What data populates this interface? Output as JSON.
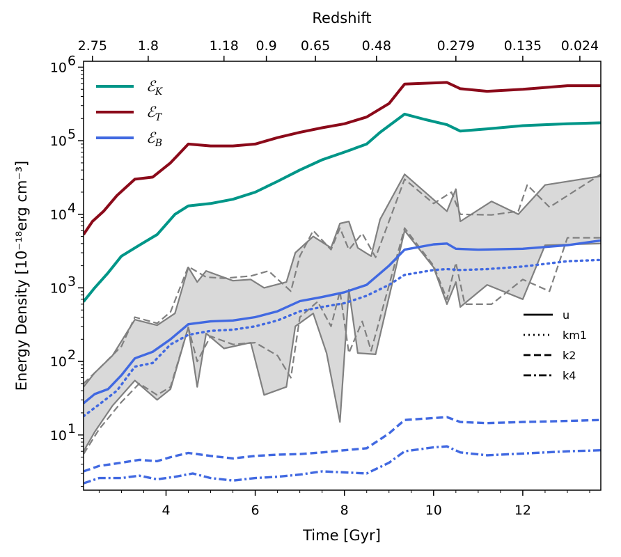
{
  "chart_data": {
    "type": "line",
    "xlabel": "Time [Gyr]",
    "ylabel": "Energy Density [10⁻¹⁸erg cm⁻³]",
    "top_xlabel": "Redshift",
    "xlim": [
      2.15,
      13.75
    ],
    "ylim_log10": [
      0.25,
      6.08
    ],
    "yscale": "log",
    "x_ticks": [
      4,
      6,
      8,
      10,
      12
    ],
    "x_tick_labels": [
      "4",
      "6",
      "8",
      "10",
      "12"
    ],
    "y_ticks_log10": [
      1,
      2,
      3,
      4,
      5,
      6
    ],
    "y_tick_labels": [
      "10",
      "10",
      "10",
      "10",
      "10",
      "10"
    ],
    "y_tick_exponents": [
      "1",
      "2",
      "3",
      "4",
      "5",
      "6"
    ],
    "top_ticks": [
      {
        "label": "2.75",
        "time": 2.35
      },
      {
        "label": "1.8",
        "time": 3.6
      },
      {
        "label": "1.18",
        "time": 5.3
      },
      {
        "label": "0.9",
        "time": 6.25
      },
      {
        "label": "0.65",
        "time": 7.35
      },
      {
        "label": "0.48",
        "time": 8.72
      },
      {
        "label": "0.279",
        "time": 10.5
      },
      {
        "label": "0.135",
        "time": 12.0
      },
      {
        "label": "0.024",
        "time": 13.28
      }
    ],
    "legend_energy": [
      {
        "symbol": "ℰ",
        "subscript": "K",
        "color": "#009688"
      },
      {
        "symbol": "ℰ",
        "subscript": "T",
        "color": "#8b0a1a"
      },
      {
        "symbol": "ℰ",
        "subscript": "B",
        "color": "#4169e1"
      }
    ],
    "legend_styles": [
      {
        "label": "u",
        "dash": "solid"
      },
      {
        "label": "km1",
        "dash": "dotted"
      },
      {
        "label": "k2",
        "dash": "dashed"
      },
      {
        "label": "k4",
        "dash": "dashdot"
      }
    ],
    "series": [
      {
        "name": "E_T",
        "color": "#8b0a1a",
        "x": [
          2.15,
          2.35,
          2.6,
          2.9,
          3.3,
          3.7,
          4.1,
          4.5,
          5.0,
          5.5,
          6.0,
          6.5,
          7.0,
          7.5,
          8.0,
          8.5,
          9.0,
          9.35,
          10.0,
          10.3,
          10.6,
          11.2,
          12.0,
          13.0,
          13.75
        ],
        "y": [
          5300,
          8000,
          11000,
          18000,
          30000,
          32000,
          50000,
          90000,
          85000,
          85000,
          90000,
          110000,
          130000,
          150000,
          170000,
          210000,
          320000,
          590000,
          610000,
          620000,
          510000,
          470000,
          500000,
          560000,
          560000
        ]
      },
      {
        "name": "E_K",
        "color": "#009688",
        "x": [
          2.15,
          2.4,
          2.7,
          3.0,
          3.4,
          3.8,
          4.2,
          4.5,
          5.0,
          5.5,
          6.0,
          6.5,
          7.0,
          7.5,
          8.0,
          8.5,
          8.8,
          9.35,
          9.8,
          10.3,
          10.6,
          11.2,
          12.0,
          13.0,
          13.75
        ],
        "y": [
          650,
          1000,
          1600,
          2700,
          3800,
          5300,
          10000,
          13000,
          14000,
          16000,
          20000,
          28000,
          40000,
          55000,
          70000,
          90000,
          130000,
          230000,
          195000,
          165000,
          135000,
          145000,
          160000,
          170000,
          175000
        ]
      },
      {
        "name": "E_B u",
        "color": "#4169e1",
        "dash": "solid",
        "x": [
          2.15,
          2.4,
          2.7,
          3.0,
          3.3,
          3.7,
          4.1,
          4.5,
          5.0,
          5.5,
          6.0,
          6.5,
          7.0,
          7.5,
          8.0,
          8.5,
          9.0,
          9.35,
          10.0,
          10.3,
          10.5,
          11.0,
          12.0,
          13.0,
          13.75
        ],
        "y": [
          27,
          36,
          42,
          65,
          110,
          135,
          200,
          320,
          350,
          360,
          400,
          480,
          660,
          750,
          870,
          1100,
          2000,
          3300,
          3900,
          4000,
          3400,
          3300,
          3400,
          3800,
          4400
        ]
      },
      {
        "name": "E_B km1",
        "color": "#4169e1",
        "dash": "dotted",
        "x": [
          2.15,
          2.5,
          2.9,
          3.3,
          3.7,
          4.1,
          4.5,
          5.0,
          5.5,
          6.0,
          6.5,
          7.0,
          7.5,
          8.0,
          8.5,
          9.0,
          9.35,
          10.0,
          10.3,
          10.6,
          11.2,
          12.0,
          13.0,
          13.75
        ],
        "y": [
          18,
          26,
          40,
          85,
          95,
          170,
          230,
          260,
          270,
          300,
          360,
          480,
          550,
          620,
          780,
          1100,
          1500,
          1750,
          1800,
          1750,
          1800,
          1950,
          2300,
          2400
        ]
      },
      {
        "name": "E_B k2",
        "color": "#4169e1",
        "dash": "dashed",
        "x": [
          2.15,
          2.5,
          3.0,
          3.4,
          3.8,
          4.1,
          4.5,
          5.0,
          5.5,
          6.0,
          6.5,
          7.0,
          7.5,
          8.0,
          8.5,
          9.0,
          9.35,
          10.0,
          10.3,
          10.6,
          11.2,
          12.0,
          13.0,
          13.75
        ],
        "y": [
          3.2,
          3.8,
          4.2,
          4.6,
          4.4,
          5.0,
          5.7,
          5.2,
          4.8,
          5.2,
          5.4,
          5.5,
          5.8,
          6.2,
          6.6,
          10.5,
          16,
          17,
          17.5,
          15,
          14.5,
          15,
          15.5,
          16
        ]
      },
      {
        "name": "E_B k4",
        "color": "#4169e1",
        "dash": "dashdot",
        "x": [
          2.15,
          2.5,
          3.0,
          3.4,
          3.8,
          4.2,
          4.6,
          5.0,
          5.5,
          6.0,
          6.5,
          7.0,
          7.5,
          8.0,
          8.5,
          9.0,
          9.35,
          10.0,
          10.3,
          10.6,
          11.2,
          12.0,
          13.0,
          13.75
        ],
        "y": [
          2.2,
          2.6,
          2.6,
          2.8,
          2.5,
          2.7,
          3.0,
          2.6,
          2.4,
          2.6,
          2.7,
          2.9,
          3.2,
          3.1,
          3.0,
          4.2,
          6.0,
          6.8,
          7.0,
          5.8,
          5.3,
          5.6,
          6.0,
          6.2
        ]
      },
      {
        "name": "band upper",
        "color": "#808080",
        "dash": "solid",
        "x": [
          2.15,
          2.4,
          2.8,
          3.3,
          3.8,
          4.2,
          4.5,
          4.7,
          4.9,
          5.5,
          5.9,
          6.2,
          6.7,
          6.9,
          7.3,
          7.7,
          7.9,
          8.1,
          8.3,
          8.6,
          8.8,
          9.35,
          10.3,
          10.5,
          10.6,
          11.3,
          11.9,
          12.5,
          13.75
        ],
        "y": [
          45,
          70,
          120,
          370,
          310,
          450,
          1900,
          1200,
          1700,
          1250,
          1300,
          1000,
          1200,
          3000,
          5000,
          3500,
          7500,
          8000,
          3500,
          2700,
          8500,
          35000,
          11000,
          22000,
          8000,
          15000,
          10000,
          25000,
          33000
        ]
      },
      {
        "name": "band lower",
        "color": "#808080",
        "dash": "solid",
        "x": [
          2.15,
          2.4,
          2.8,
          3.3,
          3.8,
          4.1,
          4.5,
          4.7,
          4.9,
          5.3,
          5.9,
          6.2,
          6.7,
          6.9,
          7.3,
          7.6,
          7.9,
          8.1,
          8.3,
          8.7,
          9.35,
          10.0,
          10.3,
          10.5,
          10.6,
          11.2,
          12.0,
          12.5,
          13.75
        ],
        "y": [
          6,
          11,
          25,
          55,
          30,
          42,
          290,
          45,
          240,
          150,
          180,
          35,
          45,
          300,
          450,
          130,
          15,
          950,
          130,
          125,
          6000,
          1900,
          600,
          1200,
          550,
          1100,
          700,
          3800,
          4000
        ]
      },
      {
        "name": "band dashed 1",
        "color": "#808080",
        "dash": "dashed",
        "x": [
          2.15,
          2.5,
          3.0,
          3.3,
          3.8,
          4.1,
          4.5,
          4.9,
          5.3,
          5.9,
          6.3,
          6.8,
          7.0,
          7.3,
          7.7,
          7.9,
          8.1,
          8.4,
          8.7,
          9.35,
          10.0,
          10.4,
          10.6,
          11.3,
          11.9,
          12.1,
          12.6,
          13.75
        ],
        "y": [
          50,
          80,
          160,
          400,
          330,
          470,
          1950,
          1400,
          1350,
          1450,
          1700,
          900,
          2700,
          6000,
          3300,
          6500,
          3300,
          5500,
          2600,
          30000,
          14000,
          20000,
          10000,
          9800,
          11000,
          25000,
          12500,
          35000
        ]
      },
      {
        "name": "band dashed 2",
        "color": "#808080",
        "dash": "dashed",
        "x": [
          2.15,
          2.5,
          3.0,
          3.4,
          3.8,
          4.1,
          4.5,
          4.7,
          5.0,
          5.5,
          6.0,
          6.5,
          6.8,
          7.0,
          7.4,
          7.7,
          7.9,
          8.1,
          8.4,
          8.6,
          9.35,
          10.0,
          10.3,
          10.5,
          10.7,
          11.3,
          12.0,
          12.6,
          13.0,
          13.75
        ],
        "y": [
          5.5,
          12,
          28,
          50,
          35,
          45,
          290,
          100,
          220,
          170,
          180,
          120,
          60,
          400,
          650,
          300,
          900,
          130,
          350,
          140,
          6500,
          2000,
          700,
          2200,
          600,
          600,
          1300,
          900,
          4800,
          4800
        ]
      }
    ]
  }
}
